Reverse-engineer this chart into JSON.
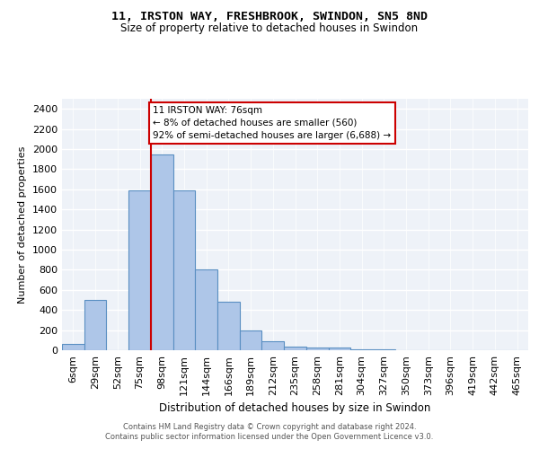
{
  "title1": "11, IRSTON WAY, FRESHBROOK, SWINDON, SN5 8ND",
  "title2": "Size of property relative to detached houses in Swindon",
  "xlabel": "Distribution of detached houses by size in Swindon",
  "ylabel": "Number of detached properties",
  "bin_labels": [
    "6sqm",
    "29sqm",
    "52sqm",
    "75sqm",
    "98sqm",
    "121sqm",
    "144sqm",
    "166sqm",
    "189sqm",
    "212sqm",
    "235sqm",
    "258sqm",
    "281sqm",
    "304sqm",
    "327sqm",
    "350sqm",
    "373sqm",
    "396sqm",
    "419sqm",
    "442sqm",
    "465sqm"
  ],
  "bar_heights": [
    60,
    500,
    0,
    1590,
    1950,
    1590,
    800,
    480,
    200,
    90,
    35,
    30,
    25,
    10,
    5,
    0,
    0,
    0,
    0,
    0,
    0
  ],
  "bar_color": "#aec6e8",
  "bar_edge_color": "#5a8fc2",
  "bg_color": "#eef2f8",
  "grid_color": "#ffffff",
  "red_line_x": 3,
  "annotation_text": "11 IRSTON WAY: 76sqm\n← 8% of detached houses are smaller (560)\n92% of semi-detached houses are larger (6,688) →",
  "annotation_box_color": "#ffffff",
  "annotation_border_color": "#cc0000",
  "vline_color": "#cc0000",
  "footer1": "Contains HM Land Registry data © Crown copyright and database right 2024.",
  "footer2": "Contains public sector information licensed under the Open Government Licence v3.0.",
  "ylim": [
    0,
    2500
  ],
  "yticks": [
    0,
    200,
    400,
    600,
    800,
    1000,
    1200,
    1400,
    1600,
    1800,
    2000,
    2200,
    2400
  ]
}
